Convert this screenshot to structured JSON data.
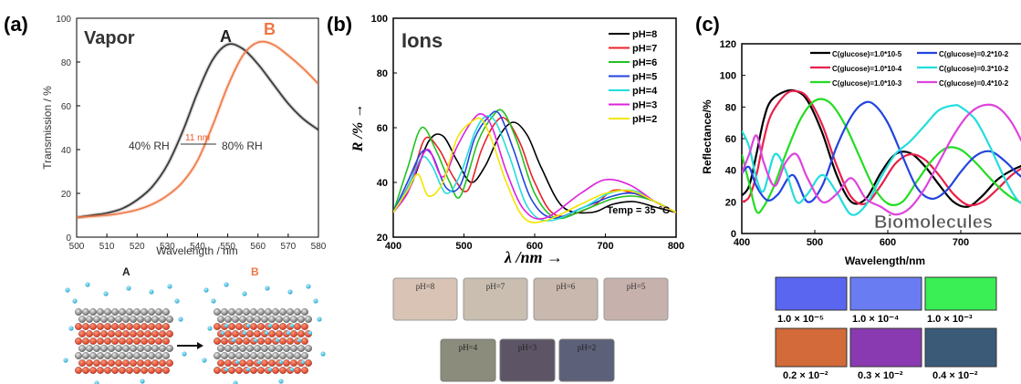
{
  "chart_data": [
    {
      "panel": "(a)",
      "type": "line",
      "title": "Vapor",
      "xlabel": "Wavelength / nm",
      "ylabel": "Transmission / %",
      "xlim": [
        500,
        580
      ],
      "ylim": [
        0,
        100
      ],
      "xticks": [
        "500",
        "510",
        "520",
        "530",
        "540",
        "550",
        "560",
        "570",
        "580"
      ],
      "yticks": [
        "0",
        "20",
        "40",
        "60",
        "80",
        "100"
      ],
      "series": [
        {
          "name": "A",
          "color": "#333333",
          "x": [
            500,
            505,
            510,
            515,
            520,
            525,
            530,
            535,
            540,
            545,
            550,
            555,
            560,
            565,
            570,
            575,
            580
          ],
          "y": [
            9,
            10,
            11,
            13,
            17,
            23,
            33,
            48,
            66,
            81,
            88,
            86,
            79,
            70,
            61,
            54,
            49
          ]
        },
        {
          "name": "B",
          "color": "#ee7744",
          "x": [
            500,
            505,
            510,
            515,
            520,
            525,
            530,
            535,
            540,
            545,
            550,
            555,
            560,
            565,
            570,
            575,
            580
          ],
          "y": [
            9,
            9.5,
            10,
            11,
            12.5,
            15,
            19,
            25,
            35,
            51,
            69,
            83,
            89,
            88,
            83,
            77,
            70
          ]
        }
      ],
      "annotations": {
        "series_a_label": "A",
        "series_b_label": "B",
        "shift": "11 nm",
        "left_rh": "40% RH",
        "right_rh": "80% RH"
      },
      "illustration": {
        "label_a": "A",
        "label_b": "B"
      }
    },
    {
      "panel": "(b)",
      "type": "line",
      "title": "Ions",
      "xlabel": "λ /nm →",
      "ylabel": "R /% →",
      "xlim": [
        400,
        800
      ],
      "ylim": [
        20,
        100
      ],
      "xticks": [
        "400",
        "500",
        "600",
        "700",
        "800"
      ],
      "yticks": [
        "20",
        "40",
        "60",
        "80",
        "100"
      ],
      "note": "Temp = 35 °C",
      "series": [
        {
          "name": "pH=8",
          "color": "#000000",
          "x": [
            400,
            425,
            450,
            470,
            490,
            510,
            530,
            550,
            570,
            590,
            610,
            640,
            680,
            710,
            740,
            770,
            800
          ],
          "y": [
            29,
            39,
            55,
            57,
            48,
            40,
            46,
            57,
            62,
            57,
            45,
            31,
            29,
            32,
            33,
            31,
            29
          ]
        },
        {
          "name": "pH=7",
          "color": "#e8232a",
          "x": [
            400,
            425,
            445,
            465,
            485,
            505,
            525,
            545,
            560,
            580,
            600,
            630,
            680,
            710,
            740,
            770,
            800
          ],
          "y": [
            29,
            41,
            56,
            52,
            42,
            37,
            52,
            62,
            63,
            54,
            40,
            28,
            31,
            37,
            36,
            33,
            29
          ]
        },
        {
          "name": "pH=6",
          "color": "#22c222",
          "x": [
            400,
            420,
            440,
            460,
            480,
            495,
            520,
            540,
            555,
            575,
            600,
            630,
            670,
            710,
            740,
            770,
            800
          ],
          "y": [
            29,
            45,
            60,
            52,
            40,
            35,
            55,
            64,
            66,
            55,
            36,
            27,
            30,
            34,
            35,
            33,
            29
          ]
        },
        {
          "name": "pH=5",
          "color": "#2244dd",
          "x": [
            400,
            420,
            440,
            455,
            475,
            495,
            515,
            535,
            550,
            570,
            595,
            625,
            670,
            710,
            740,
            770,
            800
          ],
          "y": [
            29,
            40,
            51,
            50,
            38,
            39,
            56,
            64,
            65,
            52,
            34,
            27,
            31,
            35,
            36,
            33,
            29
          ]
        },
        {
          "name": "pH=4",
          "color": "#22dddd",
          "x": [
            400,
            420,
            440,
            455,
            475,
            495,
            515,
            530,
            545,
            565,
            590,
            620,
            670,
            705,
            740,
            770,
            800
          ],
          "y": [
            29,
            38,
            49,
            46,
            36,
            43,
            58,
            64,
            62,
            49,
            31,
            26,
            31,
            36,
            37,
            33,
            29
          ]
        },
        {
          "name": "pH=3",
          "color": "#dd22dd",
          "x": [
            400,
            420,
            435,
            450,
            470,
            490,
            510,
            525,
            540,
            560,
            585,
            615,
            665,
            700,
            735,
            770,
            800
          ],
          "y": [
            29,
            36,
            46,
            52,
            42,
            53,
            62,
            65,
            60,
            44,
            30,
            27,
            36,
            41,
            39,
            33,
            29
          ]
        },
        {
          "name": "pH=2",
          "color": "#f2e600",
          "x": [
            400,
            420,
            435,
            450,
            470,
            490,
            510,
            525,
            540,
            560,
            585,
            615,
            665,
            700,
            735,
            770,
            800
          ],
          "y": [
            29,
            37,
            43,
            35,
            40,
            56,
            62,
            63,
            55,
            40,
            27,
            26,
            32,
            36,
            37,
            33,
            29
          ]
        }
      ],
      "swatches_row1": [
        "pH=8",
        "pH=7",
        "pH=6",
        "pH=5"
      ],
      "swatches_row2": [
        "pH=4",
        "pH=3",
        "pH=2"
      ]
    },
    {
      "panel": "(c)",
      "type": "line",
      "title": "Biomolecules",
      "xlabel": "Wavelength/nm",
      "ylabel": "Reflectance/%",
      "xlim": [
        400,
        800
      ],
      "ylim": [
        0,
        120
      ],
      "xticks": [
        "400",
        "500",
        "600",
        "700",
        "800"
      ],
      "yticks": [
        "0",
        "20",
        "40",
        "60",
        "80",
        "100",
        "120"
      ],
      "series": [
        {
          "name": "C(glucose)=1.0*10-5",
          "color": "#000000",
          "x": [
            400,
            410,
            420,
            430,
            440,
            460,
            475,
            490,
            510,
            530,
            550,
            570,
            590,
            610,
            630,
            650,
            670,
            690,
            710,
            730,
            750,
            770,
            790,
            800
          ],
          "y": [
            24,
            30,
            50,
            72,
            84,
            90,
            90,
            84,
            64,
            37,
            20,
            22,
            38,
            50,
            51,
            43,
            31,
            20,
            17,
            24,
            34,
            40,
            44,
            45
          ]
        },
        {
          "name": "C(glucose)=1.0*10-4",
          "color": "#e8204a",
          "x": [
            400,
            410,
            420,
            430,
            440,
            460,
            475,
            490,
            510,
            530,
            550,
            570,
            590,
            610,
            630,
            650,
            670,
            690,
            710,
            730,
            750,
            770,
            790,
            800
          ],
          "y": [
            20,
            23,
            37,
            59,
            75,
            88,
            90,
            86,
            69,
            43,
            23,
            19,
            30,
            44,
            50,
            47,
            37,
            25,
            18,
            20,
            28,
            37,
            43,
            45
          ]
        },
        {
          "name": "C(glucose)=1.0*10-3",
          "color": "#22dd22",
          "x": [
            400,
            410,
            420,
            430,
            445,
            460,
            480,
            500,
            520,
            540,
            560,
            580,
            600,
            620,
            640,
            660,
            680,
            700,
            720,
            740,
            760,
            780,
            800
          ],
          "y": [
            50,
            32,
            14,
            17,
            31,
            50,
            72,
            84,
            83,
            70,
            50,
            30,
            19,
            20,
            33,
            46,
            54,
            53,
            45,
            35,
            26,
            20,
            18
          ]
        },
        {
          "name": "C(glucose)=0.2*10-2",
          "color": "#2244dd",
          "x": [
            400,
            410,
            420,
            435,
            450,
            470,
            490,
            510,
            530,
            550,
            565,
            580,
            600,
            620,
            640,
            660,
            680,
            700,
            720,
            740,
            760,
            780,
            800
          ],
          "y": [
            38,
            42,
            30,
            21,
            25,
            37,
            20,
            30,
            55,
            74,
            82,
            82,
            70,
            49,
            29,
            22,
            27,
            39,
            49,
            52,
            46,
            37,
            31
          ]
        },
        {
          "name": "C(glucose)=0.3*10-2",
          "color": "#22dddd",
          "x": [
            400,
            410,
            420,
            430,
            445,
            460,
            475,
            490,
            510,
            530,
            550,
            570,
            590,
            610,
            630,
            650,
            670,
            690,
            700,
            720,
            740,
            760,
            780,
            800
          ],
          "y": [
            65,
            55,
            35,
            27,
            50,
            40,
            20,
            25,
            37,
            26,
            12,
            18,
            35,
            50,
            58,
            68,
            78,
            81,
            80,
            72,
            55,
            35,
            20,
            18
          ]
        },
        {
          "name": "C(glucose)=0.4*10-2",
          "color": "#dd44dd",
          "x": [
            400,
            410,
            420,
            430,
            445,
            460,
            475,
            490,
            510,
            530,
            550,
            570,
            590,
            610,
            630,
            650,
            670,
            690,
            710,
            730,
            750,
            770,
            790,
            800
          ],
          "y": [
            38,
            50,
            62,
            45,
            30,
            45,
            50,
            35,
            20,
            25,
            35,
            22,
            17,
            12,
            16,
            28,
            45,
            62,
            75,
            81,
            80,
            70,
            52,
            42
          ]
        }
      ],
      "swatch_row1": [
        "1.0 × 10⁻⁵",
        "1.0 × 10⁻⁴",
        "1.0 × 10⁻³"
      ],
      "swatch_row2": [
        "0.2 × 10⁻²",
        "0.3 × 10⁻²",
        "0.4 × 10⁻²"
      ]
    }
  ]
}
